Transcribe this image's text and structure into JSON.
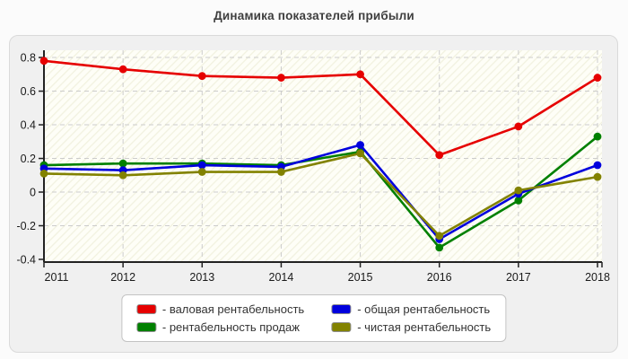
{
  "chart_data": {
    "type": "line",
    "title": "Динамика показателей прибыли",
    "x": [
      2011,
      2012,
      2013,
      2014,
      2015,
      2016,
      2017,
      2018
    ],
    "xtick_labels": [
      "2011",
      "2012",
      "2013",
      "2014",
      "2015",
      "2016",
      "2017",
      "2018"
    ],
    "yticks": [
      0.8,
      0.6,
      0.4,
      0.2,
      0,
      -0.2,
      -0.4
    ],
    "ytick_labels": [
      "0.8",
      "0.6",
      "0.4",
      "0.2",
      "0",
      "-0.2",
      "-0.4"
    ],
    "ylim": [
      -0.4,
      0.8
    ],
    "grid": "dashed-horizontal-and-vertical",
    "legend_position": "bottom-center",
    "series": [
      {
        "name": "валовая рентабельность",
        "legend_label": "- валовая рентабельность",
        "color": "#e60000",
        "values": [
          0.78,
          0.73,
          0.69,
          0.68,
          0.7,
          0.22,
          0.39,
          0.68
        ]
      },
      {
        "name": "рентабельность продаж",
        "legend_label": "- рентабельность продаж",
        "color": "#008000",
        "values": [
          0.16,
          0.17,
          0.17,
          0.16,
          0.24,
          -0.33,
          -0.05,
          0.33
        ]
      },
      {
        "name": "общая рентабельность",
        "legend_label": "- общая рентабельность",
        "color": "#0000dd",
        "values": [
          0.14,
          0.13,
          0.16,
          0.15,
          0.28,
          -0.28,
          -0.01,
          0.16
        ]
      },
      {
        "name": "чистая рентабельность",
        "legend_label": "- чистая рентабельность",
        "color": "#828200",
        "values": [
          0.11,
          0.1,
          0.12,
          0.12,
          0.23,
          -0.26,
          0.01,
          0.09
        ]
      }
    ],
    "style_colors": {
      "axis": "#222222",
      "tick_text": "#1a1a1a",
      "gridline": "#cccccc",
      "plot_bg_base": "#fefef7",
      "plot_bg_stripe": "#f2f2e0",
      "panel_bg": "#f0f0f0"
    }
  }
}
